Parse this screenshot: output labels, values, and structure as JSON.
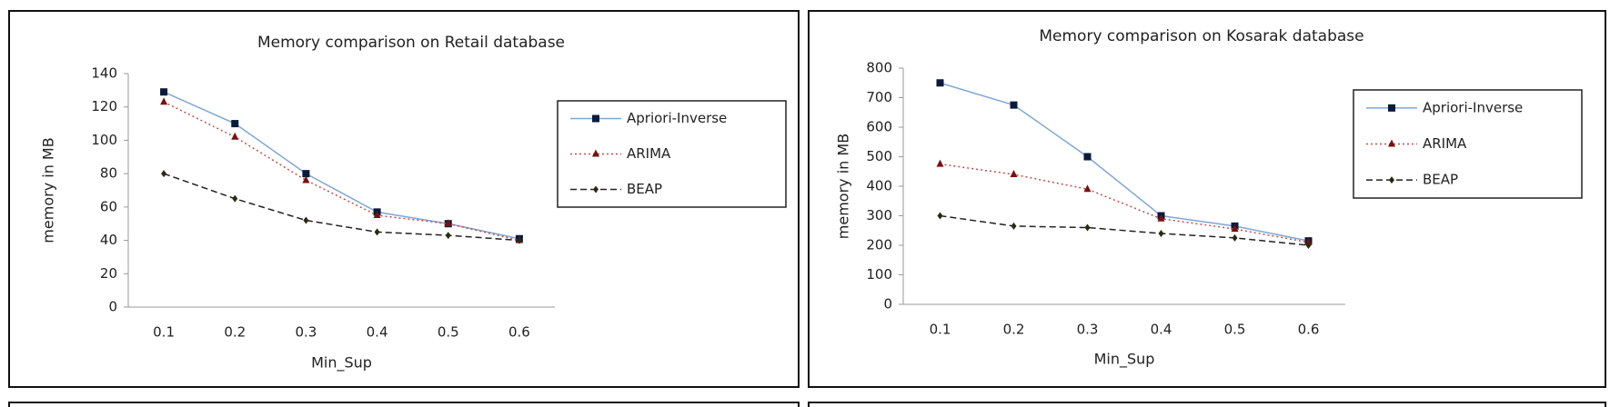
{
  "chart_data": [
    {
      "type": "line",
      "title": "Memory comparison on Retail database",
      "x_label": "Min_Sup",
      "y_label": "memory in MB",
      "categories": [
        "0.1",
        "0.2",
        "0.3",
        "0.4",
        "0.5",
        "0.6"
      ],
      "ylim": [
        0,
        140
      ],
      "yticks": [
        0,
        20,
        40,
        60,
        80,
        100,
        120,
        140
      ],
      "legend": "right",
      "series": [
        {
          "name": "Apriori-Inverse",
          "color": "#7fa7d4",
          "marker_color": "#0a1a3a",
          "marker": "square",
          "dash": "solid",
          "values": [
            129,
            110,
            80,
            57,
            50,
            41
          ]
        },
        {
          "name": "ARIMA",
          "color": "#c0504d",
          "marker_color": "#7a1010",
          "marker": "triangle",
          "dash": "dotted",
          "values": [
            123,
            102,
            76,
            55,
            50,
            40
          ]
        },
        {
          "name": "BEAP",
          "color": "#222222",
          "marker_color": "#2a2a10",
          "marker": "diamond",
          "dash": "dashed",
          "values": [
            80,
            65,
            52,
            45,
            43,
            40
          ]
        }
      ]
    },
    {
      "type": "line",
      "title": "Memory comparison on Kosarak database",
      "x_label": "Min_Sup",
      "y_label": "memory in MB",
      "categories": [
        "0.1",
        "0.2",
        "0.3",
        "0.4",
        "0.5",
        "0.6"
      ],
      "ylim": [
        0,
        800
      ],
      "yticks": [
        0,
        100,
        200,
        300,
        400,
        500,
        600,
        700,
        800
      ],
      "legend": "right",
      "series": [
        {
          "name": "Apriori-Inverse",
          "color": "#7fa7d4",
          "marker_color": "#0a1a3a",
          "marker": "square",
          "dash": "solid",
          "values": [
            750,
            675,
            500,
            300,
            265,
            215
          ]
        },
        {
          "name": "ARIMA",
          "color": "#c0504d",
          "marker_color": "#7a1010",
          "marker": "triangle",
          "dash": "dotted",
          "values": [
            475,
            440,
            390,
            290,
            255,
            210
          ]
        },
        {
          "name": "BEAP",
          "color": "#222222",
          "marker_color": "#2a2a10",
          "marker": "diamond",
          "dash": "dashed",
          "values": [
            300,
            265,
            260,
            240,
            225,
            200
          ]
        }
      ]
    }
  ]
}
